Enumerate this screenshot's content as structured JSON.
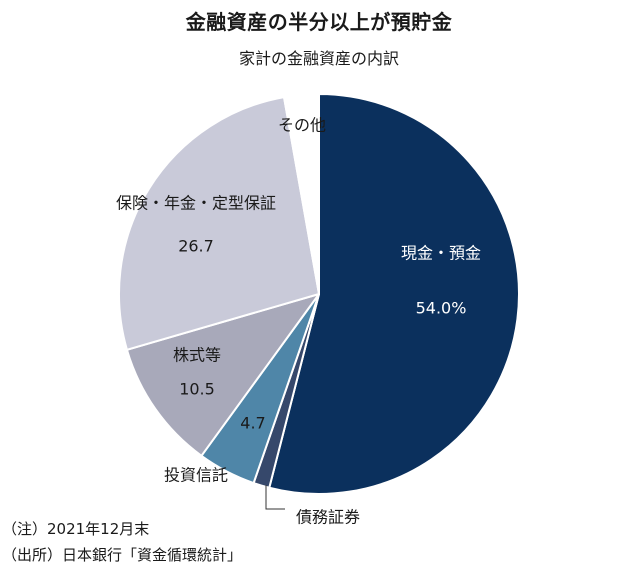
{
  "title": "金融資産の半分以上が預貯金",
  "subtitle": "家計の金融資産の内訳",
  "notes": {
    "note": "（注）2021年12月末",
    "source": "（出所）日本銀行「資金循環統計」"
  },
  "colors": {
    "cash_deposits": "#0b305d",
    "bonds": "#36486b",
    "investment_trusts": "#4f86a8",
    "equities": "#a8a9ba",
    "insurance_pensions": "#c9cad9",
    "other": "#ffffff",
    "stroke": "#ffffff",
    "leader_line": "#333333"
  },
  "chart_data": {
    "type": "pie",
    "title": "金融資産の半分以上が預貯金",
    "subtitle": "家計の金融資産の内訳",
    "start_angle": "12 o'clock",
    "direction": "clockwise",
    "slices": [
      {
        "id": "cash_deposits",
        "label": "現金・預金",
        "value": 54.0,
        "value_label": "54.0%"
      },
      {
        "id": "bonds",
        "label": "債務証券",
        "value": 1.3,
        "value_label": ""
      },
      {
        "id": "investment_trusts",
        "label": "投資信託",
        "value": 4.7,
        "value_label": "4.7"
      },
      {
        "id": "equities",
        "label": "株式等",
        "value": 10.5,
        "value_label": "10.5"
      },
      {
        "id": "insurance_pensions",
        "label": "保険・年金・定型保証",
        "value": 26.7,
        "value_label": "26.7"
      },
      {
        "id": "other",
        "label": "その他",
        "value": 2.8,
        "value_label": ""
      }
    ]
  }
}
